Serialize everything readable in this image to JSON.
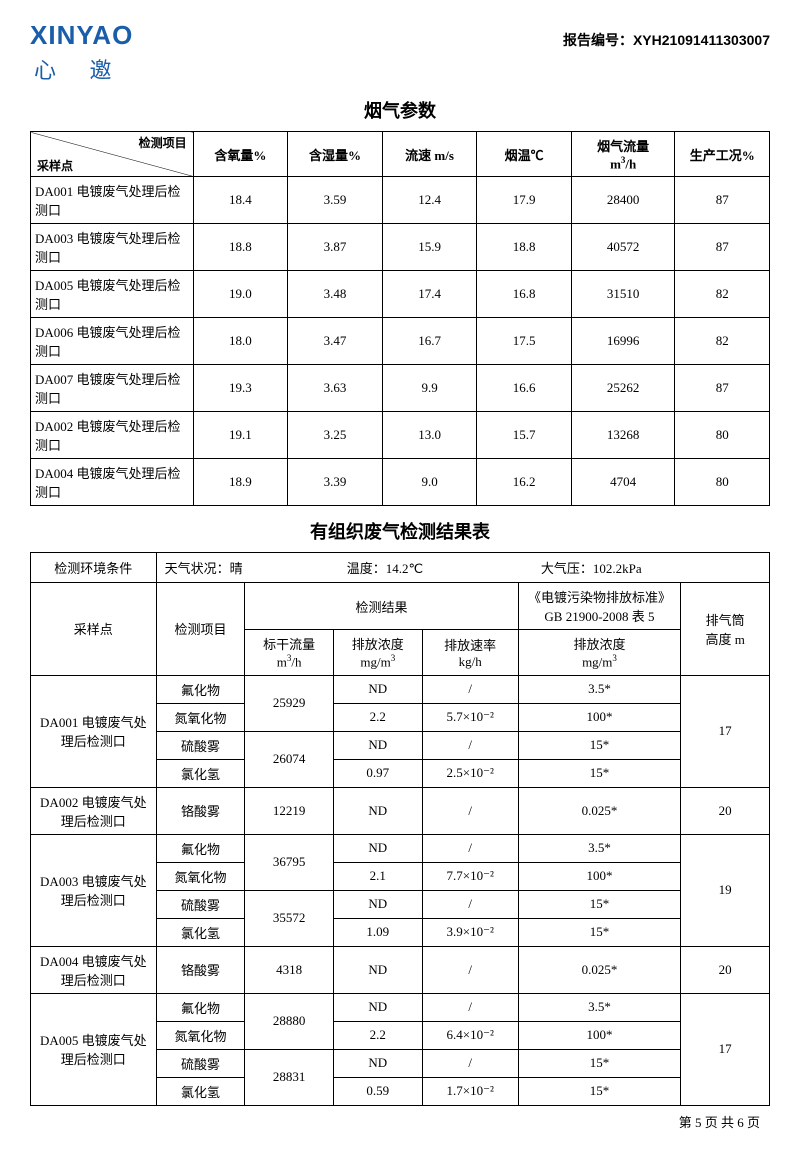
{
  "header": {
    "logo_en": "XINYAO",
    "logo_cn": "心 邀",
    "report_label": "报告编号：",
    "report_no": "XYH21091411303007"
  },
  "table1": {
    "title": "烟气参数",
    "diag_top": "检测项目",
    "diag_bot": "采样点",
    "columns": [
      "含氧量%",
      "含湿量%",
      "流速 m/s",
      "烟温℃",
      "烟气流量\nm³/h",
      "生产工况%"
    ],
    "rows": [
      {
        "point": "DA001 电镀废气处理后检测口",
        "v": [
          "18.4",
          "3.59",
          "12.4",
          "17.9",
          "28400",
          "87"
        ]
      },
      {
        "point": "DA003 电镀废气处理后检测口",
        "v": [
          "18.8",
          "3.87",
          "15.9",
          "18.8",
          "40572",
          "87"
        ]
      },
      {
        "point": "DA005 电镀废气处理后检测口",
        "v": [
          "19.0",
          "3.48",
          "17.4",
          "16.8",
          "31510",
          "82"
        ]
      },
      {
        "point": "DA006 电镀废气处理后检测口",
        "v": [
          "18.0",
          "3.47",
          "16.7",
          "17.5",
          "16996",
          "82"
        ]
      },
      {
        "point": "DA007 电镀废气处理后检测口",
        "v": [
          "19.3",
          "3.63",
          "9.9",
          "16.6",
          "25262",
          "87"
        ]
      },
      {
        "point": "DA002 电镀废气处理后检测口",
        "v": [
          "19.1",
          "3.25",
          "13.0",
          "15.7",
          "13268",
          "80"
        ]
      },
      {
        "point": "DA004 电镀废气处理后检测口",
        "v": [
          "18.9",
          "3.39",
          "9.0",
          "16.2",
          "4704",
          "80"
        ]
      }
    ]
  },
  "table2": {
    "title": "有组织废气检测结果表",
    "env": {
      "label": "检测环境条件",
      "weather_l": "天气状况：",
      "weather_v": "晴",
      "temp_l": "温度：",
      "temp_v": "14.2℃",
      "press_l": "大气压：",
      "press_v": "102.2kPa"
    },
    "h": {
      "point": "采样点",
      "item": "检测项目",
      "result": "检测结果",
      "std": "《电镀污染物排放标准》\nGB 21900-2008 表 5",
      "height": "排气筒\n高度 m",
      "flow": "标干流量\nm³/h",
      "conc": "排放浓度\nmg/m³",
      "rate": "排放速率\nkg/h",
      "std_conc": "排放浓度\nmg/m³"
    },
    "s1": {
      "point": "DA001 电镀废气处理后检测口",
      "h": "17",
      "r": [
        {
          "item": "氟化物",
          "flow": "25929",
          "fr": 2,
          "conc": "ND",
          "rate": "/",
          "std": "3.5*"
        },
        {
          "item": "氮氧化物",
          "conc": "2.2",
          "rate": "5.7×10⁻²",
          "std": "100*"
        },
        {
          "item": "硫酸雾",
          "flow": "26074",
          "fr": 2,
          "conc": "ND",
          "rate": "/",
          "std": "15*"
        },
        {
          "item": "氯化氢",
          "conc": "0.97",
          "rate": "2.5×10⁻²",
          "std": "15*"
        }
      ]
    },
    "s2": {
      "point": "DA002 电镀废气处理后检测口",
      "h": "20",
      "r": [
        {
          "item": "铬酸雾",
          "flow": "12219",
          "fr": 1,
          "conc": "ND",
          "rate": "/",
          "std": "0.025*"
        }
      ]
    },
    "s3": {
      "point": "DA003 电镀废气处理后检测口",
      "h": "19",
      "r": [
        {
          "item": "氟化物",
          "flow": "36795",
          "fr": 2,
          "conc": "ND",
          "rate": "/",
          "std": "3.5*"
        },
        {
          "item": "氮氧化物",
          "conc": "2.1",
          "rate": "7.7×10⁻²",
          "std": "100*"
        },
        {
          "item": "硫酸雾",
          "flow": "35572",
          "fr": 2,
          "conc": "ND",
          "rate": "/",
          "std": "15*"
        },
        {
          "item": "氯化氢",
          "conc": "1.09",
          "rate": "3.9×10⁻²",
          "std": "15*"
        }
      ]
    },
    "s4": {
      "point": "DA004 电镀废气处理后检测口",
      "h": "20",
      "r": [
        {
          "item": "铬酸雾",
          "flow": "4318",
          "fr": 1,
          "conc": "ND",
          "rate": "/",
          "std": "0.025*"
        }
      ]
    },
    "s5": {
      "point": "DA005 电镀废气处理后检测口",
      "h": "17",
      "r": [
        {
          "item": "氟化物",
          "flow": "28880",
          "fr": 2,
          "conc": "ND",
          "rate": "/",
          "std": "3.5*"
        },
        {
          "item": "氮氧化物",
          "conc": "2.2",
          "rate": "6.4×10⁻²",
          "std": "100*"
        },
        {
          "item": "硫酸雾",
          "flow": "28831",
          "fr": 2,
          "conc": "ND",
          "rate": "/",
          "std": "15*"
        },
        {
          "item": "氯化氢",
          "conc": "0.59",
          "rate": "1.7×10⁻²",
          "std": "15*"
        }
      ]
    }
  },
  "footer": "第 5 页 共 6 页"
}
